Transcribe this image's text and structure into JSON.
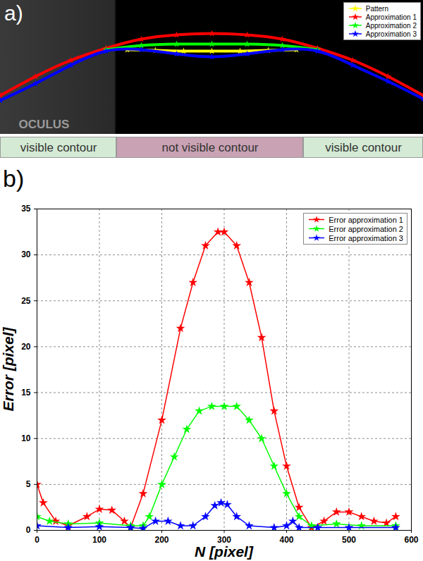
{
  "chart_data": [
    {
      "type": "line",
      "title": "a)",
      "xlim": [
        0,
        600
      ],
      "ylim": [
        190,
        0
      ],
      "tick_labels": false,
      "legend": "top-right",
      "series": [
        {
          "name": "Pattern",
          "color": "#ffff00",
          "marker": "star",
          "x": [
            180,
            220,
            260,
            300,
            340,
            380,
            420
          ],
          "values": [
            70,
            71,
            72,
            72,
            72,
            71,
            70
          ]
        },
        {
          "name": "Approximation 1",
          "color": "#ff0000",
          "marker": "star",
          "x": [
            0,
            50,
            100,
            150,
            200,
            250,
            300,
            350,
            400,
            450,
            500,
            550,
            600
          ],
          "values": [
            135,
            108,
            85,
            68,
            55,
            49,
            47,
            49,
            55,
            68,
            85,
            108,
            135
          ]
        },
        {
          "name": "Approximation 2",
          "color": "#00ff00",
          "marker": "star",
          "x": [
            150,
            200,
            250,
            300,
            350,
            400,
            450
          ],
          "values": [
            70,
            64,
            62,
            62,
            62,
            64,
            70
          ]
        },
        {
          "name": "Approximation 3",
          "color": "#0000ff",
          "marker": "star",
          "x": [
            0,
            50,
            100,
            150,
            200,
            250,
            300,
            350,
            400,
            450,
            500,
            550,
            600
          ],
          "values": [
            142,
            118,
            92,
            72,
            70,
            76,
            80,
            76,
            70,
            72,
            92,
            115,
            140
          ]
        }
      ],
      "annotations": [
        {
          "text": "OCULUS",
          "x": 62,
          "y": 176
        }
      ],
      "regions": [
        {
          "label": "visible contour",
          "x0": 0,
          "x1": 165,
          "color": "#d4ead4"
        },
        {
          "label": "not visible contour",
          "x0": 165,
          "x1": 430,
          "color": "#c9a2b4"
        },
        {
          "label": "visible contour",
          "x0": 430,
          "x1": 600,
          "color": "#d4ead4"
        }
      ]
    },
    {
      "type": "line",
      "title": "b)",
      "x_label": "N [pixel]",
      "y_label": "Error [pixel]",
      "xlim": [
        0,
        600
      ],
      "ylim": [
        0,
        35
      ],
      "xticks": [
        0,
        100,
        200,
        300,
        400,
        500,
        600
      ],
      "yticks": [
        0,
        5,
        10,
        15,
        20,
        25,
        30,
        35
      ],
      "grid": true,
      "legend": "top-right",
      "series": [
        {
          "name": "Error approximation 1",
          "color": "#ff0000",
          "marker": "star",
          "x": [
            0,
            10,
            30,
            50,
            80,
            100,
            120,
            140,
            150,
            170,
            200,
            230,
            250,
            270,
            290,
            300,
            320,
            340,
            360,
            380,
            400,
            420,
            440,
            460,
            480,
            500,
            520,
            540,
            560,
            575
          ],
          "values": [
            5,
            3,
            1,
            0.5,
            1.5,
            2.3,
            2.2,
            1,
            0.3,
            4,
            12,
            22,
            27,
            31,
            32.5,
            32.5,
            31,
            27,
            21,
            13,
            7,
            2.5,
            0.3,
            1,
            2,
            2,
            1.5,
            1,
            0.8,
            1.5
          ]
        },
        {
          "name": "Error approximation 2",
          "color": "#00ff00",
          "marker": "star",
          "x": [
            0,
            20,
            50,
            100,
            150,
            170,
            180,
            200,
            220,
            240,
            260,
            280,
            300,
            320,
            340,
            360,
            380,
            400,
            420,
            440,
            480,
            520,
            575
          ],
          "values": [
            1.5,
            1,
            0.7,
            0.8,
            0.5,
            0.5,
            1.5,
            5,
            8,
            11,
            13,
            13.5,
            13.5,
            13.5,
            12,
            10,
            7,
            4,
            1.5,
            0.5,
            0.7,
            0.5,
            0.5
          ]
        },
        {
          "name": "Error approximation 3",
          "color": "#0000ff",
          "marker": "star",
          "x": [
            0,
            50,
            100,
            150,
            170,
            190,
            210,
            230,
            250,
            270,
            285,
            295,
            305,
            320,
            340,
            380,
            400,
            410,
            420,
            450,
            500,
            575
          ],
          "values": [
            0.5,
            0.3,
            0.4,
            0.3,
            0.2,
            1,
            1,
            0.5,
            0.5,
            1.5,
            2.7,
            3,
            2.8,
            1.5,
            0.5,
            0.3,
            0.5,
            1,
            0.3,
            0.3,
            0.3,
            0.3
          ]
        }
      ]
    }
  ]
}
